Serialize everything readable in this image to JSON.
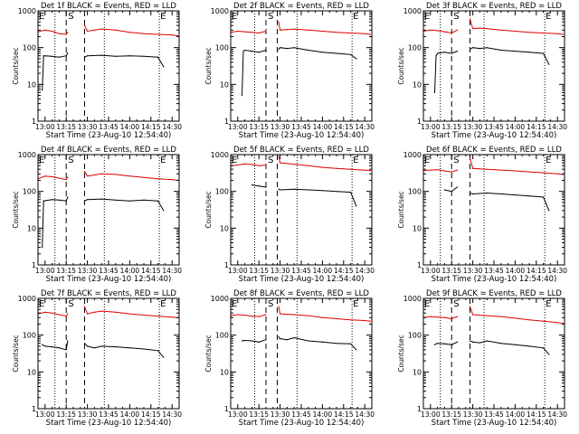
{
  "figure": {
    "ylabel": "Counts/sec",
    "xlabel": "Start Time (23-Aug-10 12:54:40)",
    "x_ticks": [
      "13:00",
      "13:15",
      "13:30",
      "13:45",
      "14:00",
      "14:15",
      "14:30"
    ],
    "y_ticks": [
      "1",
      "10",
      "100",
      "1000"
    ],
    "colors": {
      "events": "#000000",
      "lld": "#e00000",
      "axes": "#000000",
      "background": "#ffffff"
    },
    "markers": {
      "start": "S",
      "end": "E"
    }
  },
  "chart_data": [
    {
      "type": "line",
      "title": "Det 1f BLACK = Events, RED = LLD",
      "xlabel": "Start Time (23-Aug-10 12:54:40)",
      "ylabel": "Counts/sec",
      "x_unit": "minutes after 13:00",
      "xlim": [
        -5,
        95
      ],
      "ylim": [
        1,
        1000
      ],
      "log_y": true,
      "dotted_lines": [
        7,
        42,
        81
      ],
      "dashed_lines": [
        15,
        28
      ],
      "gap": [
        17,
        27
      ],
      "series": [
        {
          "name": "Events",
          "color": "#000000",
          "x": [
            -2,
            -1,
            5,
            10,
            15,
            16,
            28,
            30,
            40,
            50,
            60,
            70,
            80,
            84
          ],
          "y": [
            7,
            60,
            58,
            55,
            60,
            72,
            55,
            60,
            62,
            58,
            60,
            58,
            55,
            30
          ]
        },
        {
          "name": "LLD",
          "color": "#e00000",
          "x": [
            -5,
            0,
            5,
            10,
            15,
            16,
            28,
            30,
            35,
            40,
            50,
            60,
            70,
            80,
            90,
            94
          ],
          "y": [
            270,
            300,
            280,
            240,
            230,
            260,
            400,
            280,
            300,
            320,
            300,
            260,
            240,
            230,
            220,
            210
          ]
        }
      ]
    },
    {
      "type": "line",
      "title": "Det 2f BLACK = Events, RED = LLD",
      "xlabel": "Start Time (23-Aug-10 12:54:40)",
      "ylabel": "Counts/sec",
      "x_unit": "minutes after 13:00",
      "xlim": [
        -5,
        95
      ],
      "ylim": [
        1,
        1000
      ],
      "log_y": true,
      "dotted_lines": [
        12,
        42,
        81
      ],
      "dashed_lines": [
        20,
        28
      ],
      "gap": [
        21,
        27
      ],
      "series": [
        {
          "name": "Events",
          "color": "#000000",
          "x": [
            3,
            4,
            5,
            10,
            15,
            20,
            29,
            30,
            35,
            40,
            50,
            60,
            70,
            80,
            84
          ],
          "y": [
            5,
            80,
            85,
            80,
            75,
            85,
            90,
            100,
            95,
            100,
            85,
            75,
            70,
            65,
            50
          ]
        },
        {
          "name": "LLD",
          "color": "#e00000",
          "x": [
            -5,
            0,
            5,
            10,
            15,
            20,
            29,
            30,
            35,
            40,
            50,
            60,
            70,
            80,
            90,
            94
          ],
          "y": [
            260,
            280,
            270,
            260,
            250,
            280,
            500,
            300,
            310,
            320,
            300,
            280,
            260,
            250,
            240,
            230
          ]
        }
      ]
    },
    {
      "type": "line",
      "title": "Det 3f BLACK = Events, RED = LLD",
      "xlabel": "Start Time (23-Aug-10 12:54:40)",
      "ylabel": "Counts/sec",
      "x_unit": "minutes after 13:00",
      "xlim": [
        -5,
        95
      ],
      "ylim": [
        1,
        1000
      ],
      "log_y": true,
      "dotted_lines": [
        7,
        38,
        81
      ],
      "dashed_lines": [
        15,
        28
      ],
      "gap": [
        20,
        27
      ],
      "series": [
        {
          "name": "Events",
          "color": "#000000",
          "x": [
            3,
            4,
            5,
            10,
            15,
            19,
            28,
            30,
            35,
            40,
            50,
            60,
            70,
            80,
            84
          ],
          "y": [
            6,
            60,
            70,
            75,
            70,
            80,
            90,
            100,
            95,
            100,
            85,
            80,
            75,
            70,
            35
          ]
        },
        {
          "name": "LLD",
          "color": "#e00000",
          "x": [
            -5,
            0,
            5,
            10,
            15,
            19,
            28,
            30,
            35,
            40,
            50,
            60,
            70,
            80,
            90,
            94
          ],
          "y": [
            280,
            300,
            290,
            270,
            250,
            300,
            600,
            330,
            340,
            330,
            300,
            280,
            260,
            250,
            240,
            230
          ]
        }
      ]
    },
    {
      "type": "line",
      "title": "Det 4f BLACK = Events, RED = LLD",
      "xlabel": "Start Time (23-Aug-10 12:54:40)",
      "ylabel": "Counts/sec",
      "x_unit": "minutes after 13:00",
      "xlim": [
        -5,
        95
      ],
      "ylim": [
        1,
        1000
      ],
      "log_y": true,
      "dotted_lines": [
        7,
        42,
        81
      ],
      "dashed_lines": [
        15,
        28
      ],
      "gap": [
        17,
        27
      ],
      "series": [
        {
          "name": "Events",
          "color": "#000000",
          "x": [
            -2,
            -1,
            5,
            10,
            15,
            16,
            28,
            30,
            40,
            50,
            60,
            70,
            80,
            84
          ],
          "y": [
            3,
            55,
            60,
            58,
            55,
            70,
            55,
            60,
            62,
            58,
            55,
            58,
            55,
            30
          ]
        },
        {
          "name": "LLD",
          "color": "#e00000",
          "x": [
            -5,
            0,
            5,
            10,
            15,
            16,
            28,
            30,
            35,
            40,
            50,
            60,
            70,
            80,
            90,
            94
          ],
          "y": [
            220,
            260,
            250,
            230,
            210,
            240,
            350,
            260,
            280,
            300,
            290,
            260,
            240,
            220,
            210,
            200
          ]
        }
      ]
    },
    {
      "type": "line",
      "title": "Det 5f BLACK = Events, RED = LLD",
      "xlabel": "Start Time (23-Aug-10 12:54:40)",
      "ylabel": "Counts/sec",
      "x_unit": "minutes after 13:00",
      "xlim": [
        -5,
        95
      ],
      "ylim": [
        1,
        1000
      ],
      "log_y": true,
      "dotted_lines": [
        12,
        42,
        81
      ],
      "dashed_lines": [
        20,
        28
      ],
      "gap": [
        21,
        27
      ],
      "series": [
        {
          "name": "Events",
          "color": "#000000",
          "x": [
            10,
            15,
            20,
            29,
            30,
            40,
            50,
            60,
            70,
            80,
            84
          ],
          "y": [
            150,
            140,
            130,
            115,
            110,
            115,
            110,
            105,
            100,
            95,
            40
          ]
        },
        {
          "name": "LLD",
          "color": "#e00000",
          "x": [
            -5,
            0,
            5,
            10,
            15,
            20,
            29,
            30,
            40,
            50,
            60,
            70,
            80,
            90,
            94
          ],
          "y": [
            500,
            520,
            560,
            540,
            500,
            520,
            900,
            600,
            550,
            500,
            450,
            420,
            400,
            380,
            370
          ]
        }
      ]
    },
    {
      "type": "line",
      "title": "Det 6f BLACK = Events, RED = LLD",
      "xlabel": "Start Time (23-Aug-10 12:54:40)",
      "ylabel": "Counts/sec",
      "x_unit": "minutes after 13:00",
      "xlim": [
        -5,
        95
      ],
      "ylim": [
        1,
        1000
      ],
      "log_y": true,
      "dotted_lines": [
        7,
        38,
        81
      ],
      "dashed_lines": [
        15,
        28
      ],
      "gap": [
        20,
        27
      ],
      "series": [
        {
          "name": "Events",
          "color": "#000000",
          "x": [
            10,
            15,
            19,
            28,
            30,
            40,
            50,
            60,
            70,
            80,
            84
          ],
          "y": [
            110,
            100,
            130,
            90,
            85,
            90,
            85,
            80,
            75,
            70,
            30
          ]
        },
        {
          "name": "LLD",
          "color": "#e00000",
          "x": [
            -5,
            0,
            5,
            10,
            15,
            19,
            28,
            30,
            40,
            50,
            60,
            70,
            80,
            90,
            94
          ],
          "y": [
            370,
            380,
            390,
            360,
            340,
            380,
            800,
            420,
            400,
            380,
            360,
            340,
            320,
            300,
            290
          ]
        }
      ]
    },
    {
      "type": "line",
      "title": "Det 7f BLACK = Events, RED = LLD",
      "xlabel": "Start Time (23-Aug-10 12:54:40)",
      "ylabel": "Counts/sec",
      "x_unit": "minutes after 13:00",
      "xlim": [
        -5,
        95
      ],
      "ylim": [
        1,
        1000
      ],
      "log_y": true,
      "dotted_lines": [
        7,
        42,
        81
      ],
      "dashed_lines": [
        15,
        28
      ],
      "gap": [
        17,
        27
      ],
      "series": [
        {
          "name": "Events",
          "color": "#000000",
          "x": [
            -2,
            0,
            5,
            10,
            15,
            16,
            28,
            30,
            35,
            40,
            50,
            60,
            70,
            80,
            84
          ],
          "y": [
            55,
            50,
            48,
            45,
            40,
            70,
            60,
            50,
            45,
            50,
            48,
            45,
            42,
            38,
            25
          ]
        },
        {
          "name": "LLD",
          "color": "#e00000",
          "x": [
            -5,
            0,
            5,
            10,
            15,
            16,
            28,
            30,
            35,
            40,
            50,
            60,
            70,
            80,
            90,
            94
          ],
          "y": [
            380,
            420,
            400,
            360,
            330,
            380,
            600,
            380,
            420,
            450,
            420,
            380,
            350,
            330,
            310,
            300
          ]
        }
      ]
    },
    {
      "type": "line",
      "title": "Det 8f BLACK = Events, RED = LLD",
      "xlabel": "Start Time (23-Aug-10 12:54:40)",
      "ylabel": "Counts/sec",
      "x_unit": "minutes after 13:00",
      "xlim": [
        -5,
        95
      ],
      "ylim": [
        1,
        1000
      ],
      "log_y": true,
      "dotted_lines": [
        12,
        42,
        81
      ],
      "dashed_lines": [
        20,
        28
      ],
      "gap": [
        21,
        27
      ],
      "series": [
        {
          "name": "Events",
          "color": "#000000",
          "x": [
            3,
            5,
            10,
            15,
            20,
            29,
            30,
            35,
            40,
            50,
            60,
            70,
            80,
            84
          ],
          "y": [
            70,
            72,
            70,
            65,
            75,
            90,
            80,
            75,
            85,
            70,
            65,
            60,
            58,
            40
          ]
        },
        {
          "name": "LLD",
          "color": "#e00000",
          "x": [
            -5,
            0,
            5,
            10,
            15,
            20,
            29,
            30,
            40,
            50,
            60,
            70,
            80,
            90,
            94
          ],
          "y": [
            340,
            360,
            350,
            330,
            320,
            360,
            600,
            380,
            360,
            340,
            300,
            280,
            260,
            250,
            240
          ]
        }
      ]
    },
    {
      "type": "line",
      "title": "Det 9f BLACK = Events, RED = LLD",
      "xlabel": "Start Time (23-Aug-10 12:54:40)",
      "ylabel": "Counts/sec",
      "x_unit": "minutes after 13:00",
      "xlim": [
        -5,
        95
      ],
      "ylim": [
        1,
        1000
      ],
      "log_y": true,
      "dotted_lines": [
        7,
        38,
        81
      ],
      "dashed_lines": [
        15,
        28
      ],
      "gap": [
        20,
        27
      ],
      "series": [
        {
          "name": "Events",
          "color": "#000000",
          "x": [
            3,
            5,
            10,
            15,
            19,
            28,
            30,
            35,
            40,
            50,
            60,
            70,
            80,
            84
          ],
          "y": [
            55,
            60,
            58,
            55,
            65,
            70,
            65,
            62,
            70,
            60,
            55,
            50,
            45,
            30
          ]
        },
        {
          "name": "LLD",
          "color": "#e00000",
          "x": [
            -5,
            0,
            5,
            10,
            15,
            19,
            28,
            30,
            40,
            50,
            60,
            70,
            80,
            90,
            94
          ],
          "y": [
            300,
            320,
            310,
            300,
            280,
            320,
            600,
            360,
            340,
            320,
            290,
            260,
            240,
            220,
            210
          ]
        }
      ]
    }
  ]
}
